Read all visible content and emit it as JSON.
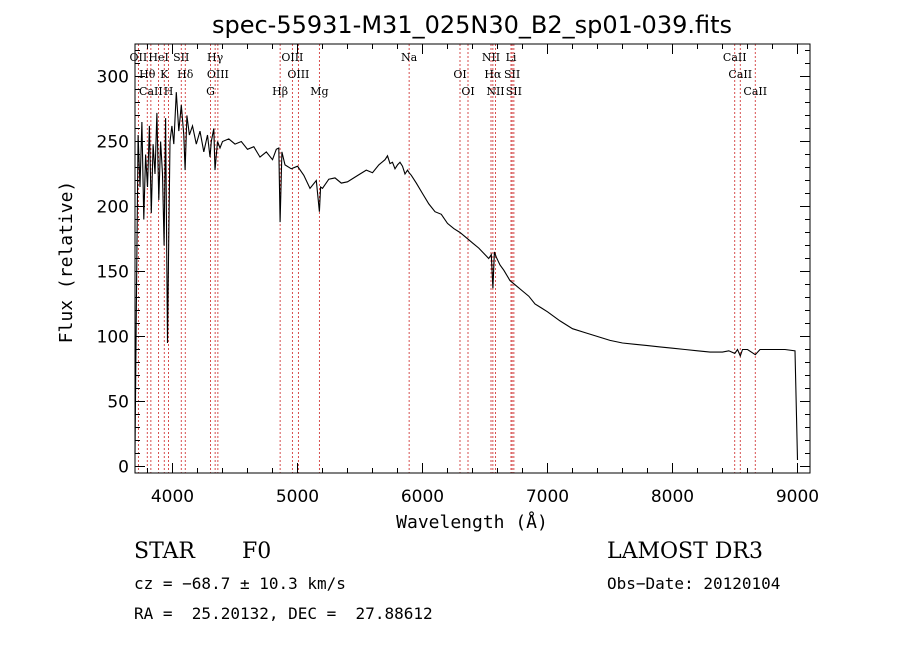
{
  "chart_data": {
    "type": "line",
    "title": "spec-55931-M31_025N30_B2_sp01-039.fits",
    "xlabel": "Wavelength (Å)",
    "ylabel": "Flux (relative)",
    "xlim": [
      3700,
      9100
    ],
    "ylim": [
      -5,
      325
    ],
    "x_ticks": [
      4000,
      5000,
      6000,
      7000,
      8000,
      9000
    ],
    "y_ticks": [
      0,
      50,
      100,
      150,
      200,
      250,
      300
    ],
    "grid": false,
    "series": [
      {
        "name": "spectrum",
        "color": "#000000",
        "x": [
          3700,
          3710,
          3725,
          3740,
          3755,
          3770,
          3785,
          3800,
          3815,
          3830,
          3845,
          3860,
          3875,
          3890,
          3905,
          3920,
          3933,
          3945,
          3960,
          3968,
          3980,
          3995,
          4010,
          4030,
          4050,
          4070,
          4090,
          4101,
          4115,
          4135,
          4160,
          4190,
          4220,
          4250,
          4280,
          4300,
          4310,
          4330,
          4340,
          4360,
          4380,
          4400,
          4450,
          4500,
          4550,
          4600,
          4650,
          4700,
          4750,
          4800,
          4830,
          4850,
          4861,
          4875,
          4900,
          4950,
          5000,
          5050,
          5100,
          5150,
          5175,
          5185,
          5200,
          5250,
          5300,
          5350,
          5400,
          5450,
          5500,
          5550,
          5600,
          5650,
          5700,
          5720,
          5740,
          5760,
          5780,
          5800,
          5820,
          5840,
          5860,
          5880,
          5893,
          5910,
          5950,
          6000,
          6050,
          6100,
          6150,
          6200,
          6250,
          6300,
          6350,
          6400,
          6450,
          6500,
          6530,
          6550,
          6563,
          6575,
          6590,
          6620,
          6650,
          6700,
          6750,
          6800,
          6850,
          6900,
          6950,
          7000,
          7100,
          7200,
          7300,
          7400,
          7500,
          7600,
          7700,
          7800,
          7900,
          8000,
          8100,
          8200,
          8300,
          8400,
          8450,
          8498,
          8520,
          8542,
          8560,
          8600,
          8662,
          8700,
          8800,
          8900,
          8980,
          9000
        ],
        "y": [
          10,
          120,
          255,
          215,
          265,
          190,
          240,
          215,
          262,
          195,
          248,
          225,
          272,
          205,
          250,
          225,
          170,
          268,
          95,
          160,
          250,
          262,
          248,
          288,
          258,
          278,
          255,
          228,
          270,
          255,
          262,
          248,
          258,
          242,
          255,
          238,
          250,
          260,
          228,
          250,
          245,
          250,
          252,
          248,
          250,
          244,
          246,
          238,
          242,
          236,
          244,
          245,
          188,
          242,
          232,
          229,
          231,
          224,
          214,
          220,
          196,
          215,
          214,
          221,
          222,
          218,
          219,
          222,
          225,
          228,
          226,
          232,
          236,
          239,
          233,
          234,
          229,
          232,
          234,
          231,
          225,
          228,
          226,
          224,
          218,
          210,
          202,
          196,
          194,
          187,
          183,
          180,
          176,
          172,
          168,
          163,
          160,
          163,
          137,
          165,
          161,
          155,
          151,
          143,
          139,
          135,
          131,
          125,
          122,
          119,
          112,
          106,
          103,
          100,
          97,
          95,
          94,
          93,
          92,
          91,
          90,
          89,
          88,
          88,
          89,
          87,
          90,
          85,
          90,
          90,
          86,
          90,
          90,
          90,
          89,
          5
        ]
      }
    ],
    "spectral_lines": [
      {
        "name": "OII",
        "wavelength": 3727
      },
      {
        "name": "Hθ",
        "wavelength": 3798
      },
      {
        "name": "CaII",
        "wavelength": 3827
      },
      {
        "name": "HeI",
        "wavelength": 3889
      },
      {
        "name": "K",
        "wavelength": 3934
      },
      {
        "name": "H",
        "wavelength": 3968
      },
      {
        "name": "SII",
        "wavelength": 4070
      },
      {
        "name": "Hδ",
        "wavelength": 4102
      },
      {
        "name": "G",
        "wavelength": 4304
      },
      {
        "name": "Hγ",
        "wavelength": 4341
      },
      {
        "name": "OIII",
        "wavelength": 4363
      },
      {
        "name": "Hβ",
        "wavelength": 4861
      },
      {
        "name": "OIII",
        "wavelength": 4959
      },
      {
        "name": "OIII",
        "wavelength": 5007
      },
      {
        "name": "Mg",
        "wavelength": 5175
      },
      {
        "name": "Na",
        "wavelength": 5893
      },
      {
        "name": "OI",
        "wavelength": 6300
      },
      {
        "name": "OI",
        "wavelength": 6364
      },
      {
        "name": "NII",
        "wavelength": 6548
      },
      {
        "name": "Hα",
        "wavelength": 6563
      },
      {
        "name": "NII",
        "wavelength": 6584
      },
      {
        "name": "Li",
        "wavelength": 6708
      },
      {
        "name": "SII",
        "wavelength": 6717
      },
      {
        "name": "SII",
        "wavelength": 6731
      },
      {
        "name": "CaII",
        "wavelength": 8498
      },
      {
        "name": "CaII",
        "wavelength": 8542
      },
      {
        "name": "CaII",
        "wavelength": 8662
      }
    ]
  },
  "info": {
    "class": "STAR",
    "subclass": "F0",
    "survey": "LAMOST DR3",
    "redshift": "cz = −68.7 ± 10.3 km/s",
    "obs_date": "Obs−Date: 20120104",
    "coords": "RA =  25.20132, DEC =  27.88612"
  },
  "colors": {
    "line_marker": "#cc2222",
    "spectrum": "#000000",
    "axes": "#000000"
  }
}
